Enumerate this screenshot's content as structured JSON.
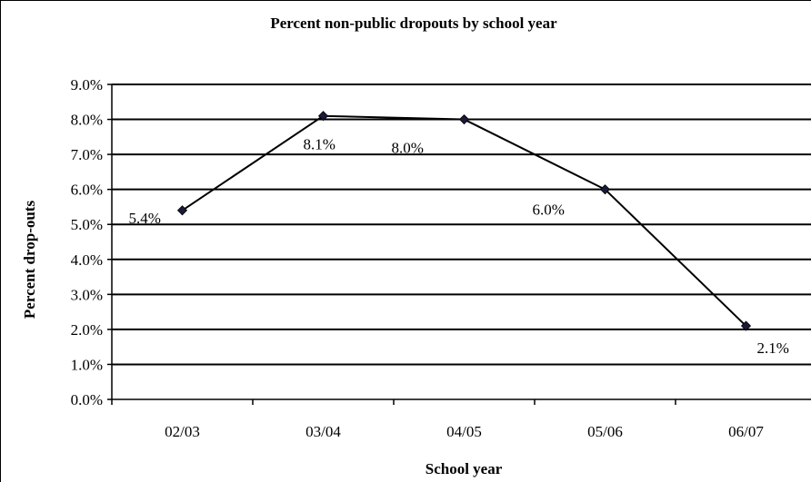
{
  "chart_data": {
    "type": "line",
    "title": "Percent non-public dropouts by school year",
    "xlabel": "School year",
    "ylabel": "Percent drop-outs",
    "categories": [
      "02/03",
      "03/04",
      "04/05",
      "05/06",
      "06/07"
    ],
    "series": [
      {
        "values": [
          5.4,
          8.1,
          8.0,
          6.0,
          2.1
        ]
      }
    ],
    "data_labels": [
      "5.4%",
      "8.1%",
      "8.0%",
      "6.0%",
      "2.1%"
    ],
    "y_tick_labels": [
      "0.0%",
      "1.0%",
      "2.0%",
      "3.0%",
      "4.0%",
      "5.0%",
      "6.0%",
      "7.0%",
      "8.0%",
      "9.0%"
    ],
    "ylim": [
      0,
      9
    ],
    "grid": true,
    "legend": "none",
    "colors": {
      "line": "#000000",
      "marker": "#1a1a3a",
      "grid": "#000000"
    }
  }
}
